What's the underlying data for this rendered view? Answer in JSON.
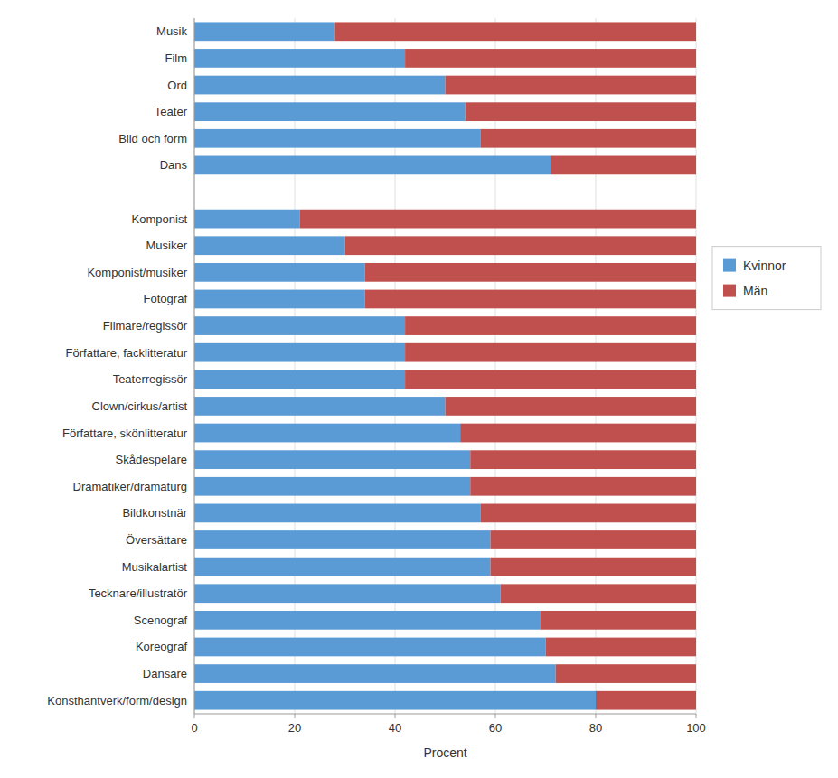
{
  "chart_data": {
    "type": "bar",
    "orientation": "horizontal",
    "stacked": true,
    "categories": [
      "Musik",
      "Film",
      "Ord",
      "Teater",
      "Bild och form",
      "Dans",
      null,
      "Komponist",
      "Musiker",
      "Komponist/musiker",
      "Fotograf",
      "Filmare/regissör",
      "Författare, facklitteratur",
      "Teaterregissör",
      "Clown/cirkus/artist",
      "Författare, skönlitteratur",
      "Skådespelare",
      "Dramatiker/dramaturg",
      "Bildkonstnär",
      "Översättare",
      "Musikalartist",
      "Tecknare/illustratör",
      "Scenograf",
      "Koreograf",
      "Dansare",
      "Konsthantverk/form/design"
    ],
    "series": [
      {
        "name": "Kvinnor",
        "color": "#5B9BD5",
        "values": [
          28,
          42,
          50,
          54,
          57,
          71,
          0,
          21,
          30,
          34,
          34,
          42,
          42,
          42,
          50,
          53,
          55,
          55,
          57,
          59,
          59,
          61,
          69,
          70,
          72,
          80
        ]
      },
      {
        "name": "Män",
        "color": "#C0504D",
        "values": [
          72,
          58,
          50,
          46,
          43,
          29,
          0,
          79,
          70,
          66,
          66,
          58,
          58,
          58,
          50,
          47,
          45,
          45,
          43,
          41,
          41,
          39,
          31,
          30,
          28,
          20
        ]
      }
    ],
    "xlabel": "Procent",
    "xlim": [
      0,
      100
    ],
    "xticks": [
      0,
      20,
      40,
      60,
      80,
      100
    ],
    "grid": true,
    "legend": "right"
  }
}
